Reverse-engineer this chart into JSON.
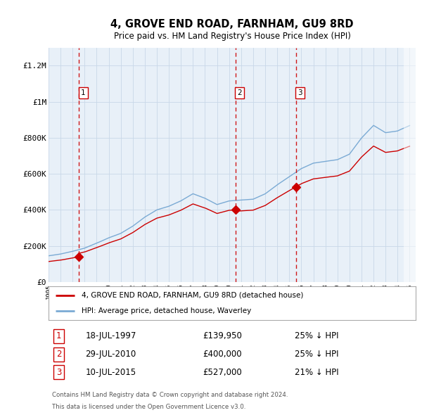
{
  "title": "4, GROVE END ROAD, FARNHAM, GU9 8RD",
  "subtitle": "Price paid vs. HM Land Registry's House Price Index (HPI)",
  "xlim_start": 1995.0,
  "xlim_end": 2025.5,
  "ylim": [
    0,
    1300000
  ],
  "yticks": [
    0,
    200000,
    400000,
    600000,
    800000,
    1000000,
    1200000
  ],
  "ytick_labels": [
    "£0",
    "£200K",
    "£400K",
    "£600K",
    "£800K",
    "£1M",
    "£1.2M"
  ],
  "sales": [
    {
      "date_year": 1997.54,
      "price": 139950,
      "label": "1"
    },
    {
      "date_year": 2010.54,
      "price": 400000,
      "label": "2"
    },
    {
      "date_year": 2015.54,
      "price": 527000,
      "label": "3"
    }
  ],
  "sale_line_color": "#cc0000",
  "hpi_line_color": "#7aaad4",
  "plot_bg_color": "#e8f0f8",
  "grid_color": "#c8d8e8",
  "legend_label_sales": "4, GROVE END ROAD, FARNHAM, GU9 8RD (detached house)",
  "legend_label_hpi": "HPI: Average price, detached house, Waverley",
  "footer_line1": "Contains HM Land Registry data © Crown copyright and database right 2024.",
  "footer_line2": "This data is licensed under the Open Government Licence v3.0.",
  "table_rows": [
    {
      "num": "1",
      "date": "18-JUL-1997",
      "price": "£139,950",
      "pct": "25% ↓ HPI"
    },
    {
      "num": "2",
      "date": "29-JUL-2010",
      "price": "£400,000",
      "pct": "25% ↓ HPI"
    },
    {
      "num": "3",
      "date": "10-JUL-2015",
      "price": "£527,000",
      "pct": "21% ↓ HPI"
    }
  ]
}
